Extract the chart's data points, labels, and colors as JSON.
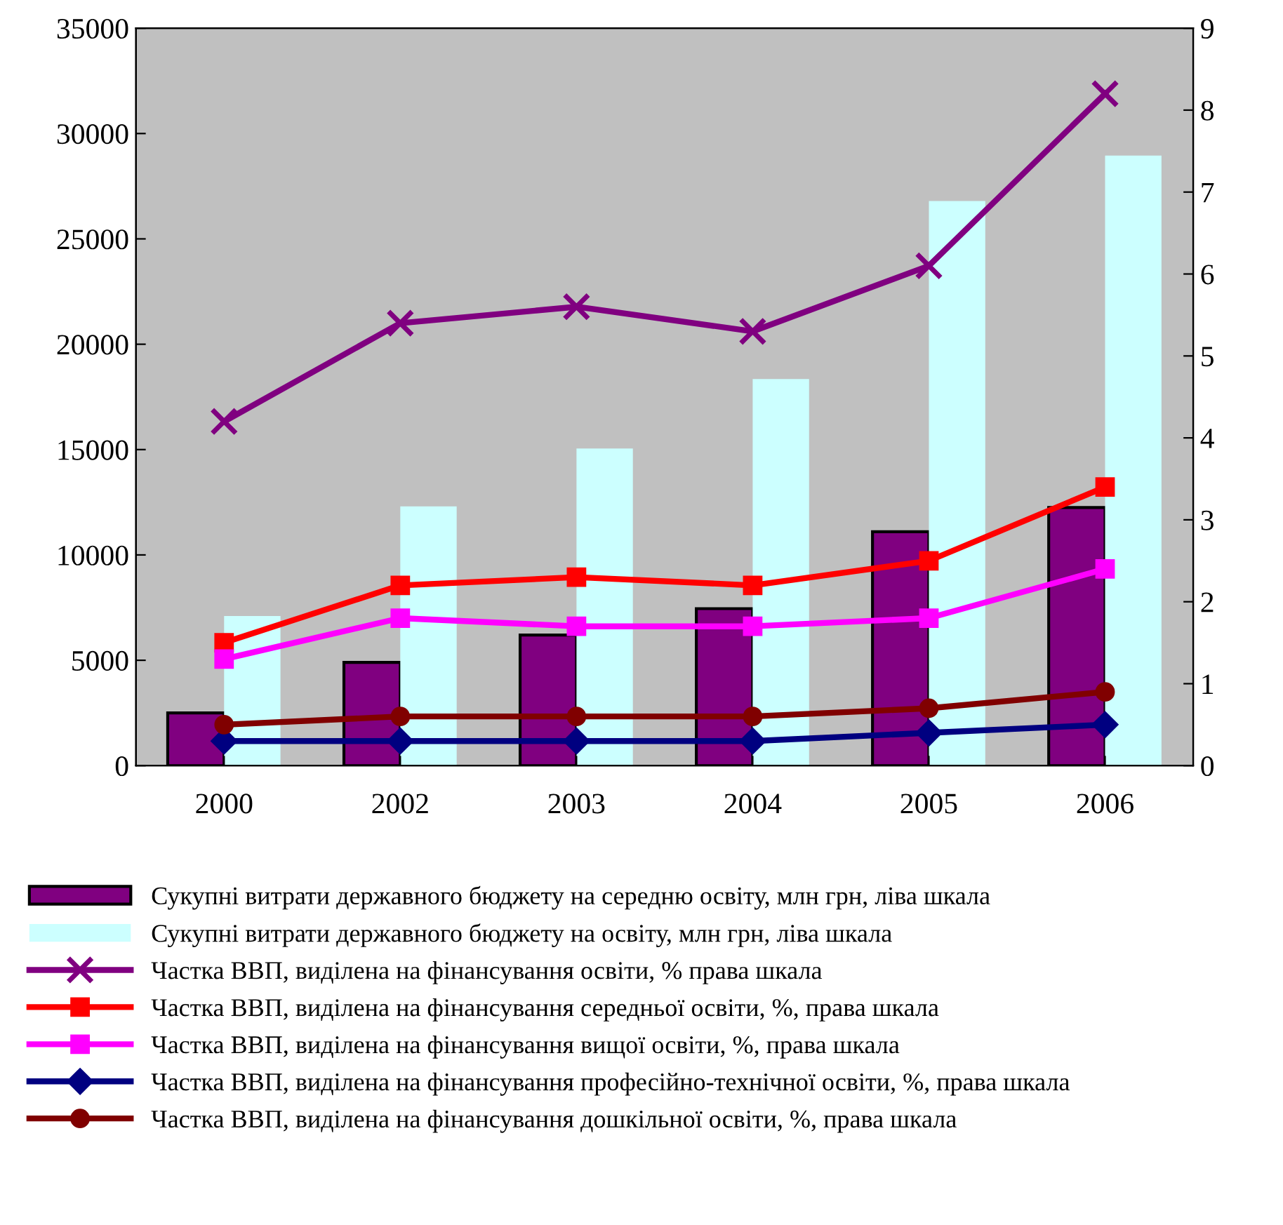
{
  "chart_data": {
    "type": "bar",
    "categories": [
      "2000",
      "2002",
      "2003",
      "2004",
      "2005",
      "2006"
    ],
    "series": [
      {
        "name": "Сукупні витрати державного бюджету на середню освіту, млн грн, ліва шкала",
        "color": "#800080",
        "values": [
          2500,
          4900,
          6200,
          7450,
          11100,
          12250
        ]
      },
      {
        "name": "Сукупні витрати державного бюджету на освіту, млн грн, ліва шкала",
        "color": "#ccffff",
        "values": [
          7100,
          12300,
          15050,
          18350,
          26800,
          28950
        ]
      },
      {
        "type": "line",
        "axis": "y2",
        "marker": "cross",
        "line_style": "solid",
        "name": "Частка ВВП, виділена на фінансування освіти, % права шкала",
        "color": "#800080",
        "values": [
          4.2,
          5.4,
          5.6,
          5.3,
          6.1,
          8.2
        ]
      },
      {
        "type": "line",
        "axis": "y2",
        "marker": "square",
        "line_style": "solid",
        "name": "Частка ВВП, виділена на фінансування середньої освіти, %, права шкала",
        "color": "#ff0000",
        "values": [
          1.5,
          2.2,
          2.3,
          2.2,
          2.5,
          3.4
        ]
      },
      {
        "type": "line",
        "axis": "y2",
        "marker": "square",
        "line_style": "solid",
        "name": "Частка ВВП, виділена на фінансування вищої освіти, %, права шкала",
        "color": "#ff00ff",
        "values": [
          1.3,
          1.8,
          1.7,
          1.7,
          1.8,
          2.4
        ]
      },
      {
        "type": "line",
        "axis": "y2",
        "marker": "diamond",
        "line_style": "solid",
        "name": "Частка ВВП, виділена на фінансування професійно-технічної освіти, %, права шкала",
        "color": "#000080",
        "values": [
          0.3,
          0.3,
          0.3,
          0.3,
          0.4,
          0.5
        ]
      },
      {
        "type": "line",
        "axis": "y2",
        "marker": "circle",
        "line_style": "solid",
        "name": "Частка ВВП, виділена на фінансування дошкільної освіти, %, права шкала",
        "color": "#800000",
        "values": [
          0.5,
          0.6,
          0.6,
          0.6,
          0.7,
          0.9
        ]
      }
    ],
    "ylim": [
      0,
      35000
    ],
    "yticks": [
      0,
      5000,
      10000,
      15000,
      20000,
      25000,
      30000,
      35000
    ],
    "y2lim": [
      0,
      9
    ],
    "y2ticks": [
      0,
      1,
      2,
      3,
      4,
      5,
      6,
      7,
      8,
      9
    ],
    "grid": false,
    "legend": "bottom"
  }
}
